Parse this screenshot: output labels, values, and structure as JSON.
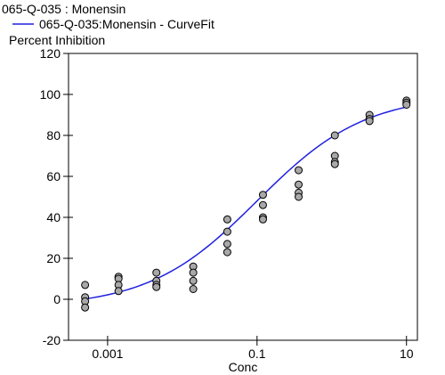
{
  "chart_data": {
    "type": "scatter",
    "title": "065-Q-035  : Monensin",
    "ylabel": "Percent Inhibition",
    "xlabel": "Conc",
    "x_scale": "log",
    "xlim": [
      0.0003,
      14
    ],
    "ylim": [
      -20,
      120
    ],
    "x_ticks": [
      {
        "value": 0.001,
        "label": "0.001"
      },
      {
        "value": 0.1,
        "label": "0.1"
      },
      {
        "value": 10,
        "label": "10"
      }
    ],
    "y_ticks": [
      {
        "value": -20,
        "label": "-20"
      },
      {
        "value": 0,
        "label": "0"
      },
      {
        "value": 20,
        "label": "20"
      },
      {
        "value": 40,
        "label": "40"
      },
      {
        "value": 60,
        "label": "60"
      },
      {
        "value": 80,
        "label": "80"
      },
      {
        "value": 100,
        "label": "100"
      },
      {
        "value": 120,
        "label": "120"
      }
    ],
    "grid": false,
    "legend": {
      "position": "top-left",
      "entries": [
        {
          "label": "065-Q-035:Monensin - CurveFit",
          "color": "#2020e0"
        }
      ]
    },
    "points": [
      {
        "x": 0.0005,
        "y": 7
      },
      {
        "x": 0.0005,
        "y": 1
      },
      {
        "x": 0.0005,
        "y": -1
      },
      {
        "x": 0.0005,
        "y": -4
      },
      {
        "x": 0.0014,
        "y": 11
      },
      {
        "x": 0.0014,
        "y": 10
      },
      {
        "x": 0.0014,
        "y": 7
      },
      {
        "x": 0.0014,
        "y": 4
      },
      {
        "x": 0.0045,
        "y": 13
      },
      {
        "x": 0.0045,
        "y": 9
      },
      {
        "x": 0.0045,
        "y": 7
      },
      {
        "x": 0.0045,
        "y": 6
      },
      {
        "x": 0.014,
        "y": 16
      },
      {
        "x": 0.014,
        "y": 13
      },
      {
        "x": 0.014,
        "y": 9
      },
      {
        "x": 0.014,
        "y": 5
      },
      {
        "x": 0.04,
        "y": 39
      },
      {
        "x": 0.04,
        "y": 33
      },
      {
        "x": 0.04,
        "y": 27
      },
      {
        "x": 0.04,
        "y": 23
      },
      {
        "x": 0.12,
        "y": 51
      },
      {
        "x": 0.12,
        "y": 46
      },
      {
        "x": 0.12,
        "y": 40
      },
      {
        "x": 0.12,
        "y": 39
      },
      {
        "x": 0.36,
        "y": 63
      },
      {
        "x": 0.36,
        "y": 56
      },
      {
        "x": 0.36,
        "y": 52
      },
      {
        "x": 0.36,
        "y": 50
      },
      {
        "x": 1.1,
        "y": 80
      },
      {
        "x": 1.1,
        "y": 70
      },
      {
        "x": 1.1,
        "y": 67
      },
      {
        "x": 1.1,
        "y": 66
      },
      {
        "x": 3.2,
        "y": 90
      },
      {
        "x": 3.2,
        "y": 88
      },
      {
        "x": 3.2,
        "y": 87
      },
      {
        "x": 10,
        "y": 97
      },
      {
        "x": 10,
        "y": 96
      },
      {
        "x": 10,
        "y": 95
      }
    ],
    "curve_fit": {
      "name": "065-Q-035:Monensin - CurveFit",
      "color": "#2020e0",
      "model": "four-parameter logistic",
      "bottom": -4,
      "top": 100,
      "ec50": 0.1,
      "hill": 0.6
    },
    "point_style": {
      "fill": "#a8a8a8",
      "stroke": "#000000"
    }
  }
}
